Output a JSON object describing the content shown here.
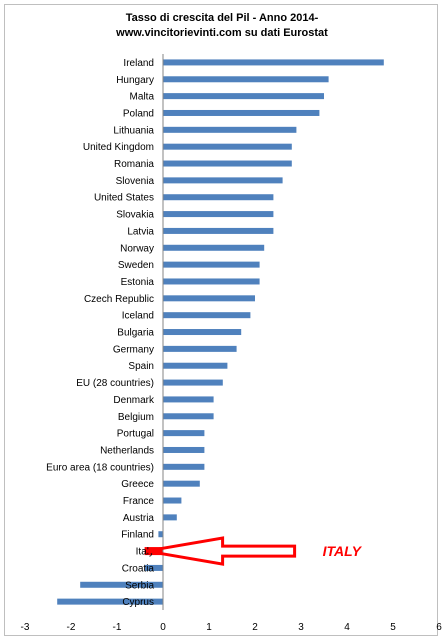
{
  "chart_data": {
    "type": "bar",
    "orientation": "horizontal",
    "title": "Tasso di crescita  del Pil - Anno 2014-",
    "subtitle": "www.vincitorievinti.com su dati Eurostat",
    "categories": [
      "Ireland",
      "Hungary",
      "Malta",
      "Poland",
      "Lithuania",
      "United Kingdom",
      "Romania",
      "Slovenia",
      "United States",
      "Slovakia",
      "Latvia",
      "Norway",
      "Sweden",
      "Estonia",
      "Czech Republic",
      "Iceland",
      "Bulgaria",
      "Germany",
      "Spain",
      "EU (28 countries)",
      "Denmark",
      "Belgium",
      "Portugal",
      "Netherlands",
      "Euro area (18 countries)",
      "Greece",
      "France",
      "Austria",
      "Finland",
      "Italy",
      "Croatia",
      "Serbia",
      "Cyprus"
    ],
    "values": [
      4.8,
      3.6,
      3.5,
      3.4,
      2.9,
      2.8,
      2.8,
      2.6,
      2.4,
      2.4,
      2.4,
      2.2,
      2.1,
      2.1,
      2.0,
      1.9,
      1.7,
      1.6,
      1.4,
      1.3,
      1.1,
      1.1,
      0.9,
      0.9,
      0.9,
      0.8,
      0.4,
      0.3,
      -0.1,
      -0.4,
      -0.4,
      -1.8,
      -2.3
    ],
    "xlim": [
      -3,
      6
    ],
    "xticks": [
      -3,
      -2,
      -1,
      0,
      1,
      2,
      3,
      4,
      5,
      6
    ],
    "xlabel": "",
    "ylabel": "",
    "grid": false,
    "legend": "none",
    "bar_color": "#4f81bd",
    "highlight": {
      "category": "Italy",
      "color": "#ff0000"
    },
    "annotation": {
      "text": "ITALY",
      "color": "#ff0000"
    }
  }
}
